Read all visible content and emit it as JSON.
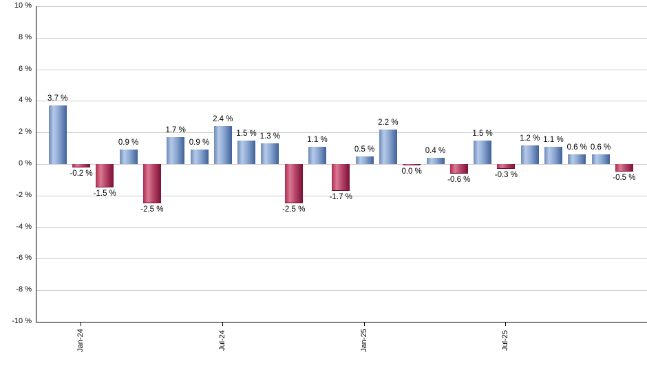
{
  "chart_data": {
    "type": "bar",
    "title": "",
    "xlabel": "",
    "ylabel": "",
    "unit": "%",
    "ylim": [
      -10,
      10
    ],
    "y_tick_step": 2,
    "y_tick_labels": [
      "10 %",
      "8 %",
      "6 %",
      "4 %",
      "2 %",
      "0 %",
      "-2 %",
      "-4 %",
      "-6 %",
      "-8 %",
      "-10 %"
    ],
    "grid": true,
    "legend": false,
    "x_tick_labels": [
      {
        "month_index": 1,
        "label": "Jan-24"
      },
      {
        "month_index": 7,
        "label": "Jul-24"
      },
      {
        "month_index": 13,
        "label": "Jan-25"
      },
      {
        "month_index": 19,
        "label": "Jul-25"
      }
    ],
    "bars": [
      {
        "month": "Dec-23",
        "value": 3.7,
        "label": "3.7 %",
        "dir": "up"
      },
      {
        "month": "Jan-24",
        "value": -0.2,
        "label": "-0.2 %",
        "dir": "down"
      },
      {
        "month": "Feb-24",
        "value": -1.5,
        "label": "-1.5 %",
        "dir": "down"
      },
      {
        "month": "Mar-24",
        "value": 0.9,
        "label": "0.9 %",
        "dir": "up"
      },
      {
        "month": "Apr-24",
        "value": -2.5,
        "label": "-2.5 %",
        "dir": "down"
      },
      {
        "month": "May-24",
        "value": 1.7,
        "label": "1.7 %",
        "dir": "up"
      },
      {
        "month": "Jun-24",
        "value": 0.9,
        "label": "0.9 %",
        "dir": "up"
      },
      {
        "month": "Jul-24",
        "value": 2.4,
        "label": "2.4 %",
        "dir": "up"
      },
      {
        "month": "Aug-24",
        "value": 1.5,
        "label": "1.5 %",
        "dir": "up"
      },
      {
        "month": "Sep-24",
        "value": 1.3,
        "label": "1.3 %",
        "dir": "up"
      },
      {
        "month": "Oct-24",
        "value": -2.5,
        "label": "-2.5 %",
        "dir": "down"
      },
      {
        "month": "Nov-24",
        "value": 1.1,
        "label": "1.1 %",
        "dir": "up"
      },
      {
        "month": "Dec-24",
        "value": -1.7,
        "label": "-1.7 %",
        "dir": "down"
      },
      {
        "month": "Jan-25",
        "value": 0.5,
        "label": "0.5 %",
        "dir": "up"
      },
      {
        "month": "Feb-25",
        "value": 2.2,
        "label": "2.2 %",
        "dir": "up"
      },
      {
        "month": "Mar-25",
        "value": 0.0,
        "label": "0.0 %",
        "dir": "down"
      },
      {
        "month": "Apr-25",
        "value": 0.4,
        "label": "0.4 %",
        "dir": "up"
      },
      {
        "month": "May-25",
        "value": -0.6,
        "label": "-0.6 %",
        "dir": "down"
      },
      {
        "month": "Jun-25",
        "value": 1.5,
        "label": "1.5 %",
        "dir": "up"
      },
      {
        "month": "Jul-25",
        "value": -0.3,
        "label": "-0.3 %",
        "dir": "down"
      },
      {
        "month": "Aug-25",
        "value": 1.2,
        "label": "1.2 %",
        "dir": "up"
      },
      {
        "month": "Sep-25",
        "value": 1.1,
        "label": "1.1 %",
        "dir": "up"
      },
      {
        "month": "Oct-25",
        "value": 0.6,
        "label": "0.6 %",
        "dir": "up"
      },
      {
        "month": "Nov-25",
        "value": 0.6,
        "label": "0.6 %",
        "dir": "up"
      },
      {
        "month": "Dec-25",
        "value": -0.5,
        "label": "-0.5 %",
        "dir": "down"
      }
    ],
    "colors": {
      "positive_bar": "#6e89b8",
      "positive_bar_highlight": "#b6cae9",
      "positive_bar_dark": "#3f6198",
      "negative_bar": "#b02a50",
      "negative_bar_highlight": "#da7b92",
      "negative_bar_dark": "#7c0f33",
      "gridline": "#cccccc",
      "axis": "#000000",
      "background": "#ffffff"
    }
  }
}
